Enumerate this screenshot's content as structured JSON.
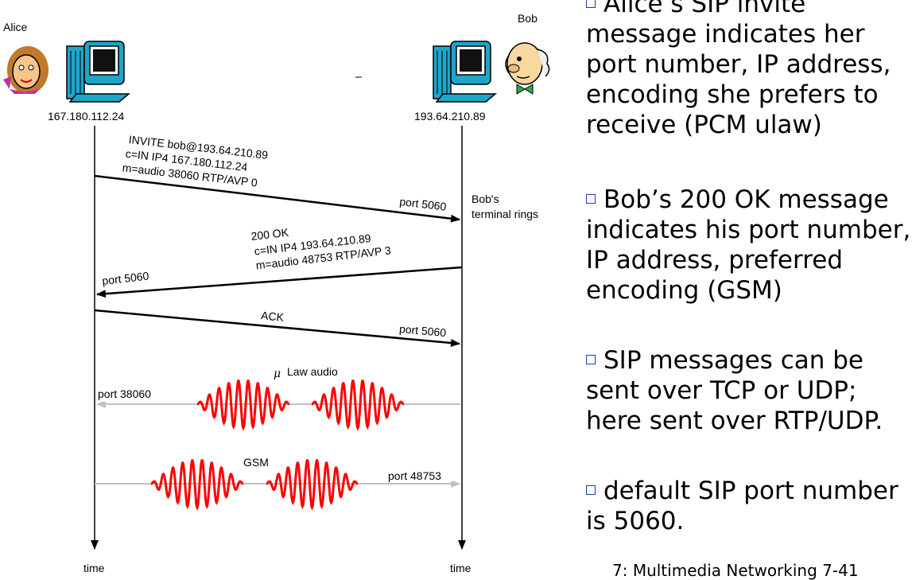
{
  "alice": {
    "name": "Alice",
    "ip": "167.180.112.24"
  },
  "bob": {
    "name": "Bob",
    "ip": "193.64.210.89"
  },
  "messages": {
    "invite": {
      "lines": [
        "INVITE bob@193.64.210.89",
        "c=IN IP4 167.180.112.24",
        "m=audio 38060 RTP/AVP 0"
      ],
      "port": "port 5060"
    },
    "bob_note": [
      "Bob's",
      "terminal rings"
    ],
    "ok": {
      "lines": [
        "200 OK",
        "c=IN IP4 193.64.210.89",
        "m=audio 48753 RTP/AVP 3"
      ],
      "port": "port 5060"
    },
    "ack": {
      "label": "ACK",
      "port": "port 5060"
    },
    "audio1": {
      "symbol": "μ",
      "label": "Law audio",
      "port": "port 38060"
    },
    "audio2": {
      "label": "GSM",
      "port": "port 48753"
    }
  },
  "time_labels": {
    "left": "time",
    "right": "time"
  },
  "bullets": [
    "Alice’s SIP invite message indicates her port number, IP address, encoding she prefers to receive (PCM ulaw)",
    "Bob’s 200 OK message indicates his port number, IP address, preferred encoding (GSM)",
    "SIP messages can be sent over TCP or UDP; here sent over RTP/UDP.",
    "default SIP port number is 5060."
  ],
  "footer": "7: Multimedia Networking   7-41",
  "colors": {
    "wave": "#ff0000",
    "audio_line": "#c0c0c0",
    "bullet": "#1f3d9c"
  },
  "icons": {
    "alice": "alice-avatar-icon",
    "bob": "bob-avatar-icon",
    "computer": "computer-icon"
  }
}
